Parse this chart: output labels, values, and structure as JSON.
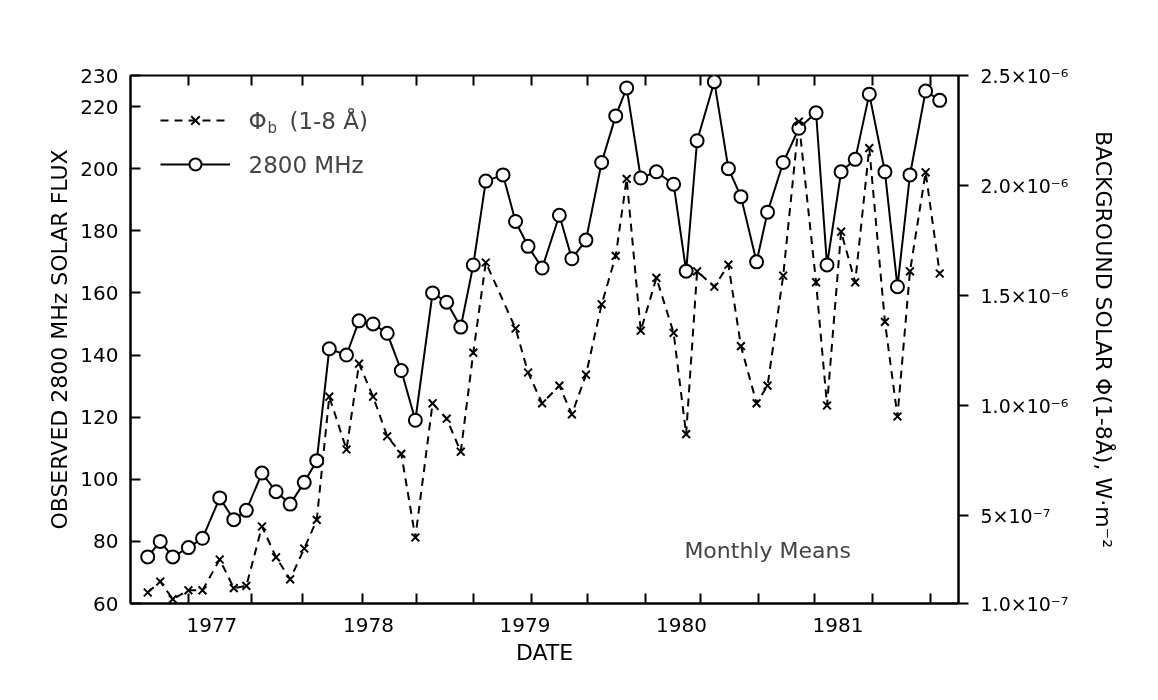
{
  "chart_data": {
    "type": "line",
    "xlabel": "DATE",
    "ylabel": "OBSERVED 2800 MHz SOLAR FLUX",
    "y2label": "BACKGROUND SOLAR Φ(1-8Å), W·m⁻²",
    "x": [
      1976.59,
      1976.67,
      1976.75,
      1976.85,
      1976.94,
      1977.05,
      1977.14,
      1977.22,
      1977.32,
      1977.41,
      1977.5,
      1977.59,
      1977.67,
      1977.75,
      1977.86,
      1977.94,
      1978.03,
      1978.12,
      1978.21,
      1978.3,
      1978.41,
      1978.5,
      1978.59,
      1978.67,
      1978.75,
      1978.86,
      1978.94,
      1979.02,
      1979.11,
      1979.22,
      1979.3,
      1979.39,
      1979.49,
      1979.58,
      1979.65,
      1979.74,
      1979.84,
      1979.95,
      1980.03,
      1980.1,
      1980.21,
      1980.3,
      1980.38,
      1980.48,
      1980.55,
      1980.65,
      1980.75,
      1980.86,
      1980.93,
      1981.02,
      1981.11,
      1981.2,
      1981.3,
      1981.38,
      1981.46,
      1981.56,
      1981.65
    ],
    "series": [
      {
        "name": "Φ$_{b}$ (1-8 Å)",
        "color": "#000000",
        "axis": "y2",
        "marker": "cross",
        "line_style": "dashed",
        "x": [
          1976.59,
          1976.67,
          1976.75,
          1976.85,
          1976.94,
          1977.05,
          1977.14,
          1977.22,
          1977.32,
          1977.41,
          1977.5,
          1977.59,
          1977.67,
          1977.75,
          1977.86,
          1977.94,
          1978.03,
          1978.12,
          1978.21,
          1978.3,
          1978.41,
          1978.5,
          1978.59,
          1978.67,
          1978.75,
          1978.94,
          1979.02,
          1979.11,
          1979.22,
          1979.3,
          1979.39,
          1979.49,
          1979.58,
          1979.65,
          1979.74,
          1979.84,
          1979.95,
          1980.03,
          1980.1,
          1980.21,
          1980.3,
          1980.38,
          1980.48,
          1980.55,
          1980.65,
          1980.75,
          1980.86,
          1980.93,
          1981.02,
          1981.11,
          1981.2,
          1981.3,
          1981.38,
          1981.46,
          1981.56,
          1981.65
        ],
        "values": [
          1.5e-07,
          2e-07,
          1.2e-07,
          1.6e-07,
          1.6e-07,
          3e-07,
          1.7e-07,
          1.8e-07,
          4.5e-07,
          3.1e-07,
          2.1e-07,
          3.5e-07,
          4.8e-07,
          1.04e-06,
          8e-07,
          1.19e-06,
          1.04e-06,
          8.6e-07,
          7.8e-07,
          4e-07,
          1.01e-06,
          9.4e-07,
          7.9e-07,
          1.24e-06,
          1.65e-06,
          1.35e-06,
          1.15e-06,
          1.01e-06,
          1.09e-06,
          9.6e-07,
          1.14e-06,
          1.46e-06,
          1.68e-06,
          2.03e-06,
          1.34e-06,
          1.58e-06,
          1.33e-06,
          8.7e-07,
          1.61e-06,
          1.54e-06,
          1.64e-06,
          1.27e-06,
          1.01e-06,
          1.09e-06,
          1.59e-06,
          2.29e-06,
          1.56e-06,
          1e-06,
          1.79e-06,
          1.56e-06,
          2.17e-06,
          1.38e-06,
          9.5e-07,
          1.61e-06,
          2.06e-06,
          1.6e-06
        ]
      },
      {
        "name": "2800 MHz",
        "color": "#000000",
        "marker": "circle",
        "line_style": "solid",
        "values": [
          75,
          80,
          75,
          78,
          81,
          94,
          87,
          90,
          102,
          96,
          92,
          99,
          106,
          142,
          140,
          151,
          150,
          147,
          135,
          119,
          160,
          157,
          149,
          169,
          196,
          198,
          183,
          175,
          168,
          185,
          171,
          177,
          202,
          217,
          226,
          197,
          199,
          195,
          167,
          209,
          228,
          200,
          191,
          170,
          186,
          202,
          213,
          218,
          169,
          199,
          203,
          224,
          199,
          162,
          198,
          225,
          222
        ]
      }
    ],
    "xlim": [
      1976.48,
      1981.77
    ],
    "xticks": [
      {
        "value": 1976.85,
        "label": null
      },
      1977,
      {
        "value": 1977.25,
        "label": null
      },
      {
        "value": 1977.58,
        "label": null
      },
      {
        "value": 1977.96,
        "label": null
      },
      1978,
      {
        "value": 1978.31,
        "label": null
      },
      {
        "value": 1978.67,
        "label": null
      },
      1979,
      {
        "value": 1979.04,
        "label": null
      },
      {
        "value": 1979.4,
        "label": null
      },
      {
        "value": 1979.77,
        "label": null
      },
      1980,
      {
        "value": 1980.12,
        "label": null
      },
      {
        "value": 1980.49,
        "label": null
      },
      {
        "value": 1980.85,
        "label": null
      },
      1981,
      {
        "value": 1981.22,
        "label": null
      },
      {
        "value": 1981.59,
        "label": null
      }
    ],
    "ylim": [
      60,
      230
    ],
    "yticks": [
      60,
      80,
      100,
      120,
      140,
      160,
      180,
      200,
      220,
      230
    ],
    "y2lim": [
      1e-07,
      2.5e-06
    ],
    "y2ticks": [
      {
        "value": 1e-07,
        "label": "1.0×10⁻⁷"
      },
      {
        "value": 5e-07,
        "label": "5×10⁻⁷"
      },
      {
        "value": 1e-06,
        "label": "1.0×10⁻⁶"
      },
      {
        "value": 1.5e-06,
        "label": "1.5×10⁻⁶"
      },
      {
        "value": 2e-06,
        "label": "2.0×10⁻⁶"
      },
      {
        "value": 2.5e-06,
        "label": "2.5×10⁻⁶"
      }
    ],
    "annotations": [
      "Monthly Means"
    ],
    "legend": "top left",
    "grid": false
  }
}
